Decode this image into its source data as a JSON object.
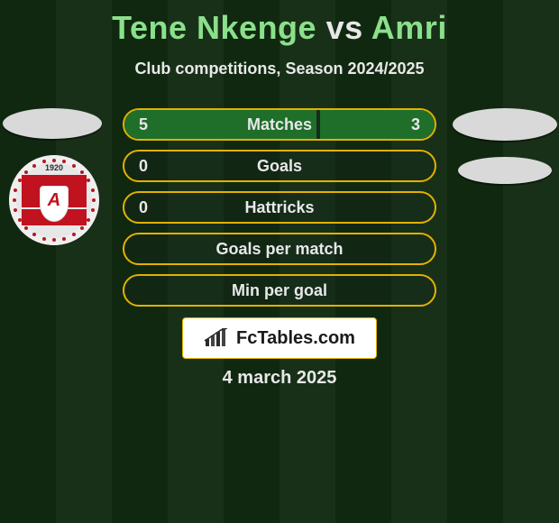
{
  "title": {
    "player1": "Tene Nkenge",
    "vs": " vs ",
    "player2": "Amri"
  },
  "subtitle": "Club competitions, Season 2024/2025",
  "colors": {
    "background_stripe_a": "#102810",
    "background_stripe_b": "#183018",
    "bar_border": "#e3b100",
    "bar_fill": "#1f6f2a",
    "text": "#e8e8e8",
    "title_accent": "#8be08b",
    "oval": "#d9d9d9",
    "branding_bg": "#ffffff",
    "branding_text": "#1a1a1a",
    "badge_red": "#c1121f",
    "badge_bg": "#e7e7e7"
  },
  "bars": [
    {
      "label": "Matches",
      "left": "5",
      "right": "3",
      "left_pct": 62.5,
      "right_pct": 37.5
    },
    {
      "label": "Goals",
      "left": "0",
      "right": "",
      "left_pct": 0,
      "right_pct": 0
    },
    {
      "label": "Hattricks",
      "left": "0",
      "right": "",
      "left_pct": 0,
      "right_pct": 0
    },
    {
      "label": "Goals per match",
      "left": "",
      "right": "",
      "left_pct": 0,
      "right_pct": 0
    },
    {
      "label": "Min per goal",
      "left": "",
      "right": "",
      "left_pct": 0,
      "right_pct": 0
    }
  ],
  "branding": {
    "text": "FcTables.com"
  },
  "date": "4 march 2025",
  "badge": {
    "year": "1920",
    "glyph": "A"
  }
}
